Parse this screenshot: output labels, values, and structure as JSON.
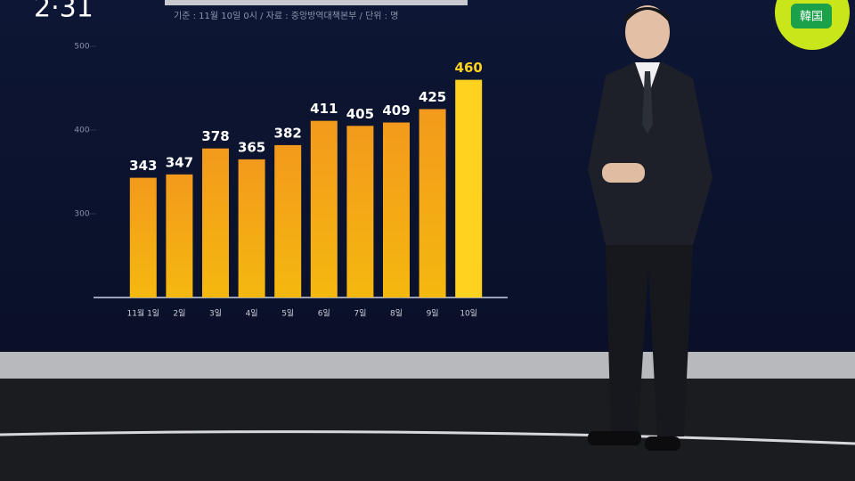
{
  "clock": "2·31",
  "logo": "韓国",
  "chart_data": {
    "type": "bar",
    "subtitle": "기준 : 11월 10일 0시 / 자료 : 중앙방역대책본부 / 단위 : 명",
    "categories": [
      "11월 1일",
      "2일",
      "3일",
      "4일",
      "5일",
      "6일",
      "7일",
      "8일",
      "9일",
      "10일"
    ],
    "values": [
      343,
      347,
      378,
      365,
      382,
      411,
      405,
      409,
      425,
      460
    ],
    "color": "#f2a21a",
    "highlight_color": "#ffd21f",
    "ylim": [
      200,
      500
    ],
    "yticks": [
      300,
      400,
      500
    ]
  }
}
